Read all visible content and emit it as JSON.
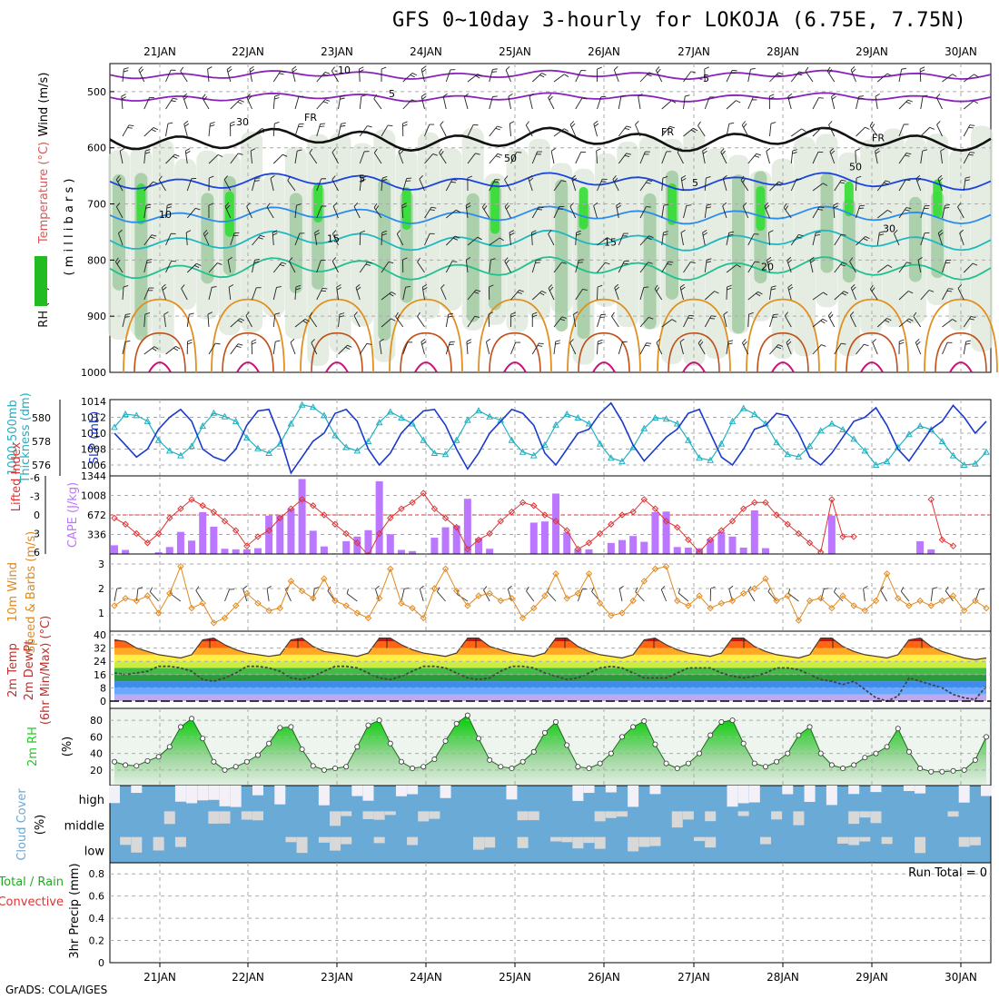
{
  "title": "GFS 0~10day 3-hourly for LOKOJA (6.75E, 7.75N)",
  "credit": "GrADS: COLA/IGES",
  "colors": {
    "grid": "#aaaaaa",
    "cape": "#bb77ff",
    "lifted": "#dd3333",
    "thickness": "#20b0c0",
    "slp": "#1a3acc",
    "wind10m": "#e08a20",
    "rh2m": "#22cc22",
    "cloud": "#6aaad6",
    "cloud_clear": "#f4f0f8",
    "cloud_patch": "#d8d8d8"
  },
  "chart_data": [
    {
      "panel": "upper-air",
      "type": "heatmap",
      "xlabels": [
        "21JAN",
        "22JAN",
        "23JAN",
        "24JAN",
        "25JAN",
        "26JAN",
        "27JAN",
        "28JAN",
        "29JAN",
        "30JAN"
      ],
      "ylabels": [
        "500",
        "600",
        "700",
        "800",
        "900",
        "1000"
      ],
      "ylabel_left": [
        "RH (%)",
        "Temperature (°C)",
        "Wind (m/s)"
      ],
      "ylabel_right": "(millibars)",
      "contour_labels": [
        "-10",
        "-5",
        "5",
        "FR",
        "FR",
        "FR",
        "5",
        "5",
        "-10",
        "10",
        "15",
        "15",
        "20",
        "50",
        "30",
        "30",
        "50"
      ],
      "ylim": [
        1000,
        450
      ]
    },
    {
      "panel": "thickness-slp",
      "type": "line",
      "ylabel_left": "1000-500mb Thickness (dm)",
      "ylabel_right": "SLP (mb)",
      "left_ticks": [
        "580",
        "578",
        "576"
      ],
      "right_ticks": [
        "1014",
        "1012",
        "1010",
        "1008",
        "1006"
      ],
      "series": [
        {
          "name": "1000-500mb Thickness (dm)",
          "values": [
            579.2,
            580.3,
            580.2,
            579.7,
            578.1,
            577.2,
            576.8,
            577.6,
            579.3,
            580.4,
            580.1,
            579.7,
            578.3,
            577.4,
            577.0,
            577.8,
            579.5,
            581.1,
            580.9,
            580.2,
            578.5,
            577.5,
            577.2,
            578.0,
            579.6,
            580.5,
            580.0,
            579.5,
            578.1,
            577.0,
            576.9,
            578.1,
            579.8,
            580.6,
            580.1,
            579.8,
            578.1,
            577.1,
            576.8,
            577.7,
            579.4,
            580.3,
            580.0,
            579.5,
            577.8,
            576.6,
            576.3,
            577.5,
            579.1,
            580.0,
            579.9,
            579.5,
            578.1,
            576.6,
            576.4,
            577.8,
            579.7,
            580.8,
            580.3,
            579.5,
            577.9,
            576.9,
            576.7,
            577.6,
            578.9,
            579.5,
            579.0,
            578.2,
            577.2,
            576.0,
            576.3,
            577.5,
            578.6,
            579.3,
            579.0,
            578.0,
            576.8,
            576.0,
            576.1,
            577.1
          ]
        },
        {
          "name": "SLP (mb)",
          "values": [
            1010.0,
            1008.5,
            1007.0,
            1008.0,
            1010.5,
            1012.0,
            1013.0,
            1011.5,
            1008.0,
            1007.0,
            1006.5,
            1008.0,
            1011.0,
            1012.8,
            1013.0,
            1009.5,
            1005.0,
            1007.0,
            1009.0,
            1010.0,
            1012.5,
            1013.0,
            1011.5,
            1008.0,
            1006.0,
            1007.5,
            1010.0,
            1011.5,
            1012.8,
            1013.0,
            1011.0,
            1008.0,
            1005.5,
            1007.5,
            1010.0,
            1011.5,
            1013.0,
            1012.5,
            1011.0,
            1007.5,
            1006.0,
            1008.0,
            1010.0,
            1010.5,
            1012.5,
            1013.8,
            1011.5,
            1008.5,
            1006.5,
            1008.0,
            1009.5,
            1010.5,
            1012.5,
            1013.0,
            1010.0,
            1007.0,
            1006.0,
            1008.0,
            1010.5,
            1011.0,
            1012.5,
            1012.2,
            1010.0,
            1007.0,
            1006.0,
            1007.5,
            1009.5,
            1011.5,
            1012.0,
            1013.2,
            1011.0,
            1008.0,
            1006.5,
            1008.5,
            1010.5,
            1011.5,
            1013.5,
            1012.0,
            1010.0,
            1011.5
          ]
        }
      ]
    },
    {
      "panel": "cape-lifted",
      "type": "bar",
      "ylabel_left": "Lifted Index",
      "ylabel_right": "CAPE (J/kg)",
      "left_ticks": [
        "-6",
        "-3",
        "0",
        "3",
        "6"
      ],
      "right_ticks": [
        "1344",
        "1008",
        "672",
        "336"
      ],
      "series": [
        {
          "name": "CAPE (J/kg)",
          "values": [
            150,
            70,
            0,
            0,
            30,
            120,
            380,
            230,
            720,
            470,
            90,
            80,
            80,
            100,
            660,
            660,
            780,
            1290,
            400,
            130,
            10,
            220,
            300,
            410,
            1250,
            340,
            70,
            50,
            0,
            280,
            460,
            490,
            950,
            270,
            90,
            0,
            0,
            0,
            540,
            560,
            1040,
            370,
            80,
            80,
            0,
            190,
            240,
            310,
            210,
            720,
            730,
            120,
            110,
            100,
            260,
            380,
            300,
            110,
            750,
            100,
            0,
            0,
            0,
            0,
            0,
            660,
            0,
            0,
            0,
            0,
            0,
            0,
            0,
            220,
            80,
            0,
            0,
            0,
            0,
            0
          ]
        },
        {
          "name": "Lifted Index",
          "values": [
            0.5,
            1.5,
            3.0,
            4.5,
            3.0,
            0.5,
            -1.0,
            -2.5,
            -1.5,
            -0.5,
            1.0,
            2.5,
            5.0,
            3.5,
            2.5,
            0.5,
            -1.0,
            -2.5,
            -1.5,
            0.0,
            1.5,
            3.0,
            4.5,
            6.5,
            3.0,
            0.5,
            -1.0,
            -2.0,
            -3.5,
            -1.0,
            0.5,
            2.0,
            5.5,
            4.0,
            3.0,
            1.0,
            -0.5,
            -2.0,
            -1.5,
            0.0,
            1.0,
            2.5,
            5.5,
            4.5,
            3.0,
            1.5,
            0.0,
            -0.5,
            -2.5,
            -1.0,
            1.0,
            2.0,
            4.0,
            6.0,
            4.0,
            2.5,
            1.0,
            -1.0,
            -2.0,
            -2.0,
            0.0,
            1.5,
            3.0,
            4.5,
            6.0,
            -2.5,
            3.5,
            3.5,
            null,
            null,
            null,
            null,
            null,
            null,
            -2.5,
            4.0,
            5.0,
            null,
            null,
            null
          ]
        }
      ]
    },
    {
      "panel": "wind10m",
      "type": "line",
      "ylabel_left": "10m Wind Speed & Barbs (m/s)",
      "left_ticks": [
        "3",
        "2",
        "1"
      ],
      "series": [
        {
          "name": "10m Wind Speed (m/s)",
          "values": [
            1.3,
            1.6,
            1.5,
            1.7,
            1.0,
            1.8,
            2.9,
            1.2,
            1.4,
            0.6,
            0.8,
            1.3,
            1.8,
            1.4,
            1.1,
            1.2,
            2.3,
            1.9,
            1.6,
            2.4,
            1.5,
            1.3,
            1.0,
            0.8,
            1.6,
            2.8,
            1.4,
            1.2,
            0.8,
            2.0,
            2.8,
            1.9,
            1.3,
            1.7,
            1.8,
            1.5,
            1.6,
            0.8,
            1.2,
            1.7,
            2.6,
            1.6,
            1.8,
            2.6,
            1.4,
            0.9,
            1.0,
            1.5,
            2.3,
            2.8,
            2.9,
            1.5,
            1.3,
            1.7,
            1.2,
            1.4,
            1.5,
            1.8,
            2.0,
            2.4,
            1.5,
            1.7,
            0.7,
            1.5,
            1.6,
            1.2,
            1.7,
            1.3,
            1.1,
            1.5,
            2.6,
            1.6,
            1.3,
            1.5,
            1.3,
            1.5,
            1.7,
            1.1,
            1.5,
            1.2
          ]
        }
      ]
    },
    {
      "panel": "temp2m",
      "type": "area",
      "ylabel_left": [
        "2m Temp",
        "2m DewPt",
        "(6hr Min/Max) (°C)"
      ],
      "left_ticks": [
        "40",
        "32",
        "24",
        "16",
        "8",
        "0"
      ],
      "series": [
        {
          "name": "2m Temp (°C)",
          "values": [
            37,
            36,
            32,
            30,
            28,
            27,
            26,
            28,
            37,
            38,
            34,
            31,
            29,
            28,
            27,
            28,
            37,
            38,
            33,
            30,
            29,
            28,
            27,
            29,
            38,
            38,
            34,
            31,
            29,
            28,
            27,
            29,
            38,
            38,
            33,
            31,
            29,
            28,
            27,
            29,
            38,
            38,
            33,
            30,
            28,
            27,
            26,
            28,
            37,
            38,
            34,
            31,
            29,
            28,
            27,
            29,
            38,
            38,
            33,
            30,
            28,
            27,
            26,
            28,
            38,
            38,
            33,
            30,
            28,
            27,
            26,
            28,
            37,
            38,
            33,
            30,
            28,
            26,
            25,
            26
          ]
        },
        {
          "name": "2m DewPt (°C)",
          "values": [
            17,
            16,
            17,
            18,
            21,
            21,
            20,
            18,
            13,
            12,
            14,
            17,
            21,
            21,
            20,
            18,
            14,
            13,
            15,
            18,
            21,
            21,
            20,
            17,
            14,
            13,
            15,
            18,
            21,
            21,
            20,
            17,
            14,
            13,
            14,
            18,
            21,
            21,
            20,
            17,
            15,
            13,
            14,
            17,
            20,
            21,
            20,
            17,
            14,
            14,
            14,
            17,
            20,
            20,
            20,
            17,
            15,
            14,
            15,
            17,
            20,
            20,
            19,
            16,
            13,
            12,
            10,
            12,
            7,
            2,
            0,
            3,
            14,
            12,
            10,
            8,
            4,
            2,
            1,
            9
          ]
        }
      ]
    },
    {
      "panel": "rh2m",
      "type": "area",
      "ylabel_left": "2m RH (%)",
      "left_ticks": [
        "80",
        "60",
        "40",
        "20"
      ],
      "series": [
        {
          "name": "2m RH (%)",
          "values": [
            30,
            26,
            25,
            31,
            36,
            48,
            72,
            82,
            58,
            30,
            20,
            24,
            30,
            38,
            52,
            71,
            72,
            45,
            25,
            20,
            22,
            24,
            48,
            74,
            80,
            52,
            30,
            22,
            24,
            33,
            55,
            76,
            86,
            58,
            32,
            24,
            22,
            30,
            42,
            65,
            78,
            50,
            24,
            22,
            28,
            40,
            60,
            72,
            79,
            51,
            28,
            22,
            28,
            40,
            62,
            78,
            80,
            52,
            28,
            24,
            30,
            40,
            62,
            72,
            40,
            26,
            22,
            26,
            35,
            40,
            48,
            70,
            42,
            22,
            18,
            18,
            19,
            20,
            32,
            60
          ]
        }
      ]
    },
    {
      "panel": "cloud",
      "type": "heatmap",
      "ylabel_left": "Cloud Cover (%)",
      "levels": [
        "high",
        "middle",
        "low"
      ]
    },
    {
      "panel": "precip",
      "type": "bar",
      "ylabel_left": "3hr Precip (mm)",
      "legend_left": [
        "Total / Rain",
        "Convective"
      ],
      "left_ticks": [
        "0.8",
        "0.6",
        "0.4",
        "0.2",
        "0"
      ],
      "annotation": "Run Total = 0",
      "values": [
        0,
        0,
        0,
        0,
        0,
        0,
        0,
        0,
        0,
        0
      ]
    }
  ]
}
